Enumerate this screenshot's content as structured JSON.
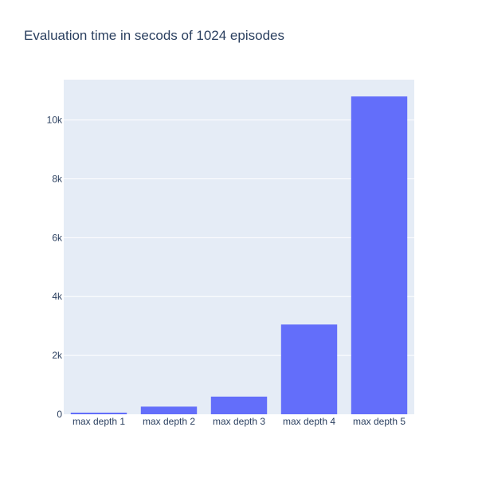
{
  "chart_data": {
    "type": "bar",
    "title": "Evaluation time in secods of 1024 episodes",
    "xlabel": "",
    "ylabel": "",
    "categories": [
      "max depth 1",
      "max depth 2",
      "max depth 3",
      "max depth 4",
      "max depth 5"
    ],
    "values": [
      55,
      260,
      600,
      3050,
      10800
    ],
    "ylim": [
      0,
      11370
    ],
    "yticks": [
      0,
      2000,
      4000,
      6000,
      8000,
      10000
    ],
    "ytick_labels": [
      "0",
      "2k",
      "4k",
      "6k",
      "8k",
      "10k"
    ],
    "grid": true,
    "legend": "none",
    "colors": {
      "bar": "#636efa",
      "plot_bg": "#e5ecf6",
      "grid": "#ffffff",
      "text": "#2a3f5f"
    }
  }
}
